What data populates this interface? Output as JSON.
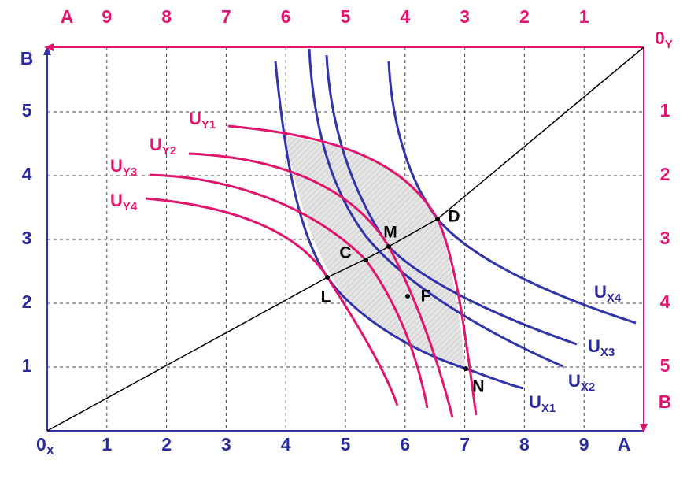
{
  "axes": {
    "bottom": {
      "origin": {
        "main": "0",
        "sub": "X"
      },
      "ticks": [
        "1",
        "2",
        "3",
        "4",
        "5",
        "6",
        "7",
        "8",
        "9"
      ],
      "end": "A"
    },
    "left": {
      "end": "B",
      "ticks": [
        "5",
        "4",
        "3",
        "2",
        "1"
      ]
    },
    "top": {
      "end": "A",
      "ticks": [
        "9",
        "8",
        "7",
        "6",
        "5",
        "4",
        "3",
        "2",
        "1"
      ],
      "origin": {
        "main": "0",
        "sub": "Y"
      }
    },
    "right": {
      "ticks": [
        "1",
        "2",
        "3",
        "4",
        "5"
      ],
      "end": "B"
    }
  },
  "curves": [
    {
      "main": "U",
      "sub": "Y1"
    },
    {
      "main": "U",
      "sub": "Y2"
    },
    {
      "main": "U",
      "sub": "Y3"
    },
    {
      "main": "U",
      "sub": "Y4"
    },
    {
      "main": "U",
      "sub": "X1"
    },
    {
      "main": "U",
      "sub": "X2"
    },
    {
      "main": "U",
      "sub": "X3"
    },
    {
      "main": "U",
      "sub": "X4"
    }
  ],
  "points": [
    "D",
    "M",
    "C",
    "L",
    "F",
    "N"
  ]
}
